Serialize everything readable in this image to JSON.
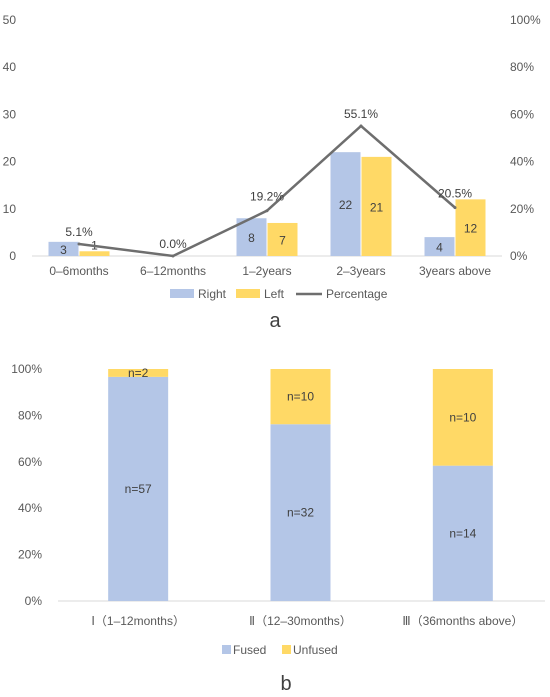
{
  "colors": {
    "right": "#B4C6E7",
    "left": "#FFD966",
    "percentage": "#6E6E6E",
    "fused": "#B4C6E7",
    "unfused": "#FFD966",
    "axis_text": "#595959",
    "gridline": "#D9D9D9"
  },
  "panel_labels": [
    "a",
    "b"
  ],
  "chart_data": [
    {
      "type": "bar",
      "panel": "a",
      "categories": [
        "0–6months",
        "6–12months",
        "1–2years",
        "2–3years",
        "3years above"
      ],
      "series": [
        {
          "name": "Right",
          "kind": "bar",
          "values": [
            3,
            0,
            8,
            22,
            4
          ],
          "data_labels": [
            "3",
            "",
            "8",
            "22",
            "4"
          ]
        },
        {
          "name": "Left",
          "kind": "bar",
          "values": [
            1,
            0,
            7,
            21,
            12
          ],
          "data_labels": [
            "1",
            "",
            "7",
            "21",
            "12"
          ]
        },
        {
          "name": "Percentage",
          "kind": "line",
          "axis": "secondary",
          "values": [
            5.1,
            0.0,
            19.2,
            55.1,
            20.5
          ],
          "data_labels": [
            "5.1%",
            "0.0%",
            "19.2%",
            "55.1%",
            "20.5%"
          ]
        }
      ],
      "ylim": [
        0,
        50
      ],
      "yticks": [
        "0",
        "10",
        "20",
        "30",
        "40",
        "50"
      ],
      "y2lim": [
        0,
        100
      ],
      "y2ticks": [
        "0%",
        "20%",
        "40%",
        "60%",
        "80%",
        "100%"
      ],
      "grid": false,
      "legend": "bottom"
    },
    {
      "type": "bar",
      "panel": "b",
      "stacked": true,
      "categories": [
        "Ⅰ（1–12months）",
        "Ⅱ（12–30months）",
        "Ⅲ（36months above）"
      ],
      "series": [
        {
          "name": "Fused",
          "values": [
            57,
            32,
            14
          ],
          "data_labels": [
            "n=57",
            "n=32",
            "n=14"
          ]
        },
        {
          "name": "Unfused",
          "values": [
            2,
            10,
            10
          ],
          "data_labels": [
            "n=2",
            "n=10",
            "n=10"
          ]
        }
      ],
      "ylim": [
        0,
        100
      ],
      "yticks": [
        "0%",
        "20%",
        "40%",
        "60%",
        "80%",
        "100%"
      ],
      "grid": false,
      "legend": "bottom"
    }
  ]
}
